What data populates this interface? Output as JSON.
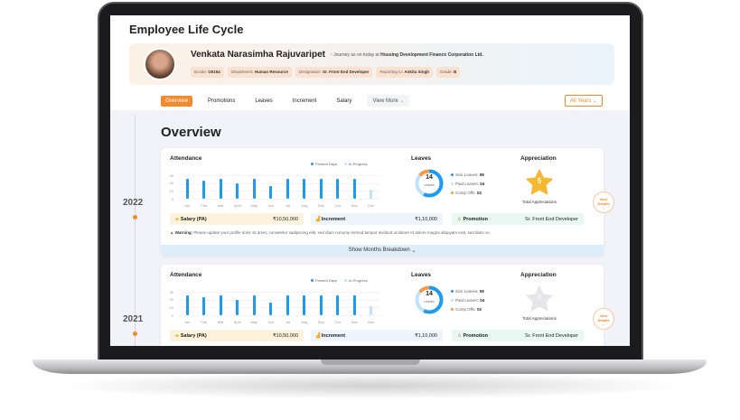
{
  "page": {
    "title": "Employee Life Cycle"
  },
  "profile": {
    "name": "Venkata Narasimha Rajuvaripet",
    "journey_prefix": "Journey as on today at",
    "company": "Housing Development Finance Corporation Ltd.",
    "chips": [
      {
        "label": "Ecode:",
        "value": "O0154"
      },
      {
        "label": "Department:",
        "value": "Human Resource"
      },
      {
        "label": "Designation:",
        "value": "Sr. Front End Developer"
      },
      {
        "label": "Reporting to:",
        "value": "Ankita Singh"
      },
      {
        "label": "Grade:",
        "value": "B"
      }
    ]
  },
  "tabs": [
    "Overview",
    "Promotions",
    "Leaves",
    "Increment",
    "Salary"
  ],
  "view_more": "View More",
  "years_filter": "All Years",
  "overview_title": "Overview",
  "colors": {
    "accent": "#f28a2e",
    "present": "#1d9bf0",
    "in_progress": "#bfe3fb",
    "comp_off": "#f59a4a",
    "star": "#f8b731"
  },
  "cards": [
    {
      "year": "2022",
      "attendance": {
        "title": "Attendance",
        "legend": [
          "Present Days",
          "In-Progress"
        ],
        "yticks": [
          "30",
          "20",
          "10",
          "0"
        ],
        "chart_data": {
          "type": "bar",
          "categories": [
            "Jan",
            "Feb",
            "Mar",
            "April",
            "May",
            "Jun",
            "Jul",
            "Aug",
            "Sep",
            "Oct",
            "Nov",
            "Dec"
          ],
          "values": [
            25,
            23,
            25,
            20,
            25,
            16,
            25,
            25,
            25,
            25,
            25,
            11
          ],
          "in_progress": [
            false,
            false,
            false,
            false,
            false,
            false,
            false,
            false,
            false,
            false,
            false,
            true
          ],
          "ylim": [
            0,
            30
          ]
        }
      },
      "leaves": {
        "title": "Leaves",
        "total": "14",
        "unit": "Leaves",
        "items": [
          {
            "label": "Sick Leaves:",
            "value": "08"
          },
          {
            "label": "Paid Leaves:",
            "value": "04"
          },
          {
            "label": "Comp Offs:",
            "value": "02"
          }
        ]
      },
      "appreciation": {
        "title": "Appreciation",
        "count": "5",
        "caption": "Total Appreciations"
      },
      "view_details": "View Details",
      "salary": {
        "label": "Salary (PA)",
        "value": "₹10,50,000"
      },
      "increment": {
        "label": "Increment",
        "value": "₹1,10,000"
      },
      "promotion": {
        "label": "Promotion",
        "value": "Sr. Front End Developer"
      },
      "warning": {
        "label": "Warning:",
        "text": "Please update your profile dolor sit amet, consetetur sadipscing elitr, sed diam nonumy eirmod tempor invidunt ut labore et dolore magna aliquyam erat, sed diam vo."
      },
      "show_months": "Show Months Breakdown"
    },
    {
      "year": "2021",
      "attendance": {
        "title": "Attendance",
        "legend": [
          "Present Days",
          "In-Progress"
        ],
        "yticks": [
          "30",
          "20",
          "10",
          "0"
        ],
        "chart_data": {
          "type": "bar",
          "categories": [
            "Jan",
            "Feb",
            "Mar",
            "April",
            "May",
            "Jun",
            "Jul",
            "Aug",
            "Sep",
            "Oct",
            "Nov",
            "Dec"
          ],
          "values": [
            25,
            23,
            25,
            20,
            25,
            16,
            25,
            25,
            25,
            25,
            25,
            11
          ],
          "in_progress": [
            false,
            false,
            false,
            false,
            false,
            false,
            false,
            false,
            false,
            false,
            false,
            true
          ],
          "ylim": [
            0,
            30
          ]
        }
      },
      "leaves": {
        "title": "Leaves",
        "total": "14",
        "unit": "Leaves",
        "items": [
          {
            "label": "Sick Leaves:",
            "value": "08"
          },
          {
            "label": "Paid Leaves:",
            "value": "04"
          },
          {
            "label": "Comp Offs:",
            "value": "02"
          }
        ]
      },
      "appreciation": {
        "title": "Appreciation",
        "count": "0",
        "caption": "Total Appreciations"
      },
      "view_details": "View Details",
      "salary": {
        "label": "Salary (PA)",
        "value": "₹10,50,000"
      },
      "increment": {
        "label": "Increment",
        "value": "₹1,10,000"
      },
      "promotion": {
        "label": "Promotion",
        "value": "Sr. Front End Developer"
      }
    }
  ]
}
